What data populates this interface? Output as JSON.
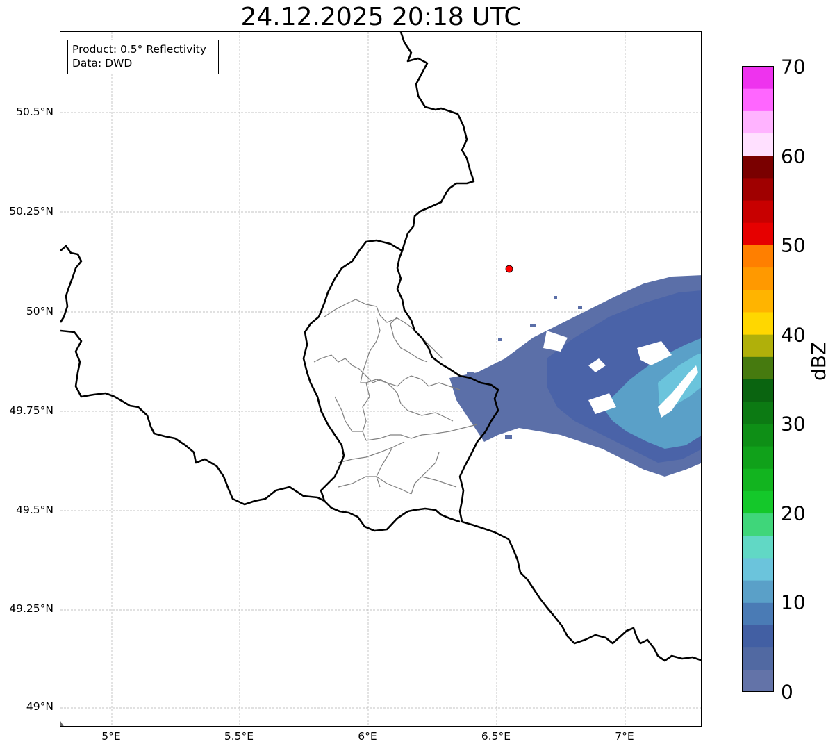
{
  "title": "24.12.2025 20:18 UTC",
  "info": {
    "product": "Product: 0.5° Reflectivity",
    "data_source": "Data: DWD"
  },
  "axes": {
    "lat_ticks": [
      "50.5°N",
      "50.25°N",
      "50°N",
      "49.75°N",
      "49.5°N",
      "49.25°N",
      "49°N"
    ],
    "lon_ticks": [
      "5°E",
      "5.5°E",
      "6°E",
      "6.5°E",
      "7°E"
    ]
  },
  "map": {
    "extent_lon": [
      4.8,
      7.3
    ],
    "extent_lat": [
      48.95,
      50.7
    ],
    "radar_site": {
      "lon": 6.55,
      "lat": 50.11,
      "color": "#ff0000"
    },
    "border_color": "#000000",
    "district_color": "#808080",
    "grid": true
  },
  "colorbar": {
    "label": "dBZ",
    "ticks": [
      "70",
      "60",
      "50",
      "40",
      "30",
      "20",
      "10",
      "0"
    ],
    "range": [
      0,
      70
    ],
    "colors": [
      "#6373a8",
      "#5169a2",
      "#425fa3",
      "#4a7bb5",
      "#5aa0c8",
      "#6bc4dc",
      "#61d8c5",
      "#3fd67a",
      "#14c82a",
      "#12b41f",
      "#10a11a",
      "#0e8f16",
      "#0c7a13",
      "#0a6410",
      "#467a0f",
      "#b0b00a",
      "#ffd700",
      "#ffb400",
      "#ff9900",
      "#ff7f00",
      "#e60000",
      "#c80000",
      "#a00000",
      "#7a0000",
      "#ffe0ff",
      "#ffb3ff",
      "#ff66ff",
      "#ee33ee"
    ]
  },
  "reflectivity_colors": {
    "weak": "#6373a8",
    "light": "#4a6bb0",
    "moderate": "#5aa0c8",
    "strong": "#6bc4dc"
  }
}
